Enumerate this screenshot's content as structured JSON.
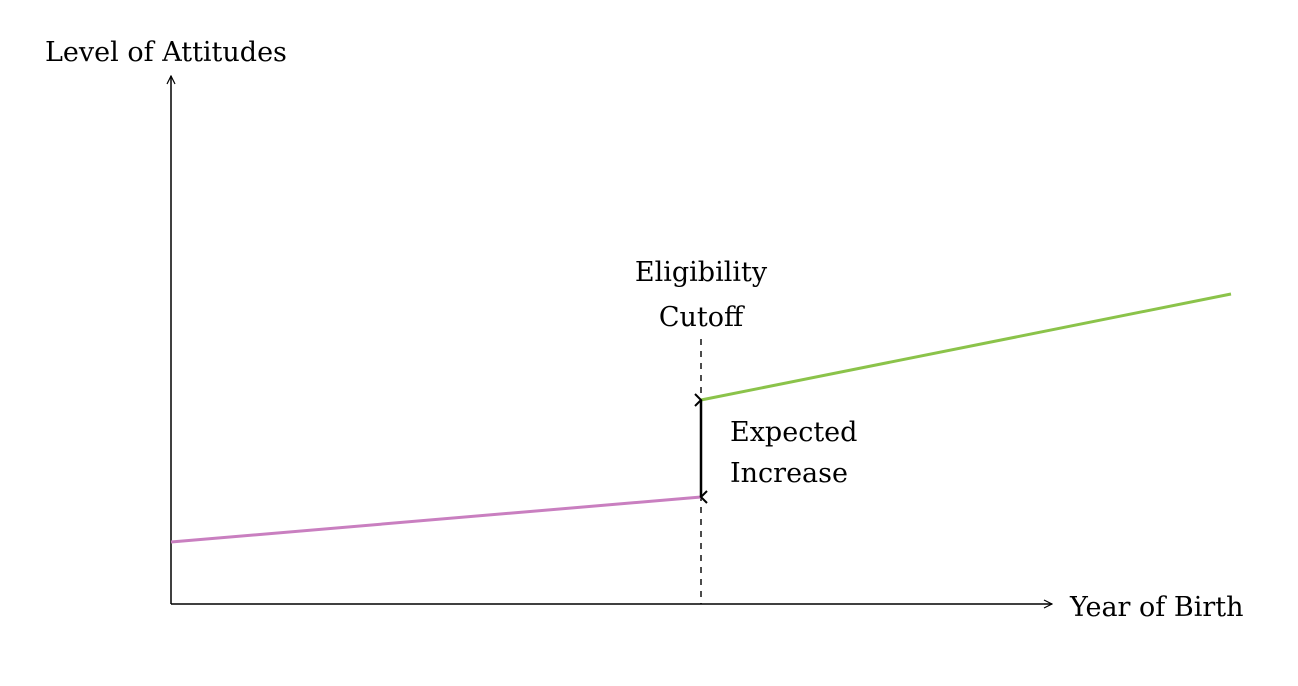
{
  "diagram": {
    "y_axis_label": "Level of Attitudes",
    "x_axis_label": "Year of Birth",
    "cutoff_label": {
      "line1": "Eligibility",
      "line2": "Cutoff"
    },
    "effect_label": {
      "line1": "Expected",
      "line2": "Increase"
    },
    "colors": {
      "axis": "#000000",
      "before_cutoff_line": "#c97fc0",
      "after_cutoff_line": "#8bc34a",
      "cutoff_line": "#000000",
      "arrow": "#000000"
    }
  }
}
